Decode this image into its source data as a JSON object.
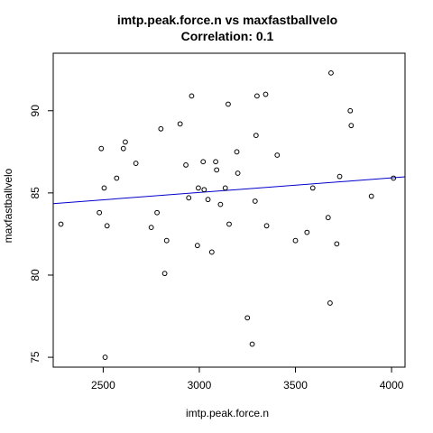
{
  "chart_data": {
    "type": "scatter",
    "title": "imtp.peak.force.n vs maxfastballvelo",
    "subtitle": "Correlation: 0.1",
    "xlabel": "imtp.peak.force.n",
    "ylabel": "maxfastballvelo",
    "xlim": [
      2240,
      4070
    ],
    "ylim": [
      74.4,
      93.5
    ],
    "xticks": [
      2500,
      3000,
      3500,
      4000
    ],
    "yticks": [
      75,
      80,
      85,
      90
    ],
    "grid": false,
    "colors": {
      "points": "#000000",
      "regression": "#0000cc",
      "frame": "#000000"
    },
    "regression": {
      "x": [
        2240,
        4070
      ],
      "y": [
        84.35,
        85.98
      ]
    },
    "points": [
      {
        "x": 2280,
        "y": 83.1
      },
      {
        "x": 2480,
        "y": 83.8
      },
      {
        "x": 2490,
        "y": 87.7
      },
      {
        "x": 2505,
        "y": 85.3
      },
      {
        "x": 2510,
        "y": 75.0
      },
      {
        "x": 2520,
        "y": 83.0
      },
      {
        "x": 2570,
        "y": 85.9
      },
      {
        "x": 2605,
        "y": 87.7
      },
      {
        "x": 2615,
        "y": 88.1
      },
      {
        "x": 2670,
        "y": 86.8
      },
      {
        "x": 2750,
        "y": 82.9
      },
      {
        "x": 2780,
        "y": 83.8
      },
      {
        "x": 2800,
        "y": 88.9
      },
      {
        "x": 2820,
        "y": 80.1
      },
      {
        "x": 2830,
        "y": 82.1
      },
      {
        "x": 2900,
        "y": 89.2
      },
      {
        "x": 2930,
        "y": 86.7
      },
      {
        "x": 2945,
        "y": 84.7
      },
      {
        "x": 2960,
        "y": 90.9
      },
      {
        "x": 2990,
        "y": 81.8
      },
      {
        "x": 2995,
        "y": 85.3
      },
      {
        "x": 3020,
        "y": 86.9
      },
      {
        "x": 3025,
        "y": 85.2
      },
      {
        "x": 3045,
        "y": 84.6
      },
      {
        "x": 3065,
        "y": 81.4
      },
      {
        "x": 3085,
        "y": 86.9
      },
      {
        "x": 3090,
        "y": 86.4
      },
      {
        "x": 3110,
        "y": 84.3
      },
      {
        "x": 3135,
        "y": 85.3
      },
      {
        "x": 3150,
        "y": 90.4
      },
      {
        "x": 3155,
        "y": 83.1
      },
      {
        "x": 3195,
        "y": 87.5
      },
      {
        "x": 3200,
        "y": 86.2
      },
      {
        "x": 3250,
        "y": 77.4
      },
      {
        "x": 3275,
        "y": 75.8
      },
      {
        "x": 3290,
        "y": 84.5
      },
      {
        "x": 3295,
        "y": 88.5
      },
      {
        "x": 3300,
        "y": 90.9
      },
      {
        "x": 3345,
        "y": 91.0
      },
      {
        "x": 3350,
        "y": 83.0
      },
      {
        "x": 3405,
        "y": 87.3
      },
      {
        "x": 3500,
        "y": 82.1
      },
      {
        "x": 3560,
        "y": 82.6
      },
      {
        "x": 3590,
        "y": 85.3
      },
      {
        "x": 3670,
        "y": 83.5
      },
      {
        "x": 3680,
        "y": 78.3
      },
      {
        "x": 3685,
        "y": 92.3
      },
      {
        "x": 3715,
        "y": 81.9
      },
      {
        "x": 3730,
        "y": 86.0
      },
      {
        "x": 3785,
        "y": 90.0
      },
      {
        "x": 3790,
        "y": 89.1
      },
      {
        "x": 3895,
        "y": 84.8
      },
      {
        "x": 4010,
        "y": 85.9
      }
    ]
  }
}
